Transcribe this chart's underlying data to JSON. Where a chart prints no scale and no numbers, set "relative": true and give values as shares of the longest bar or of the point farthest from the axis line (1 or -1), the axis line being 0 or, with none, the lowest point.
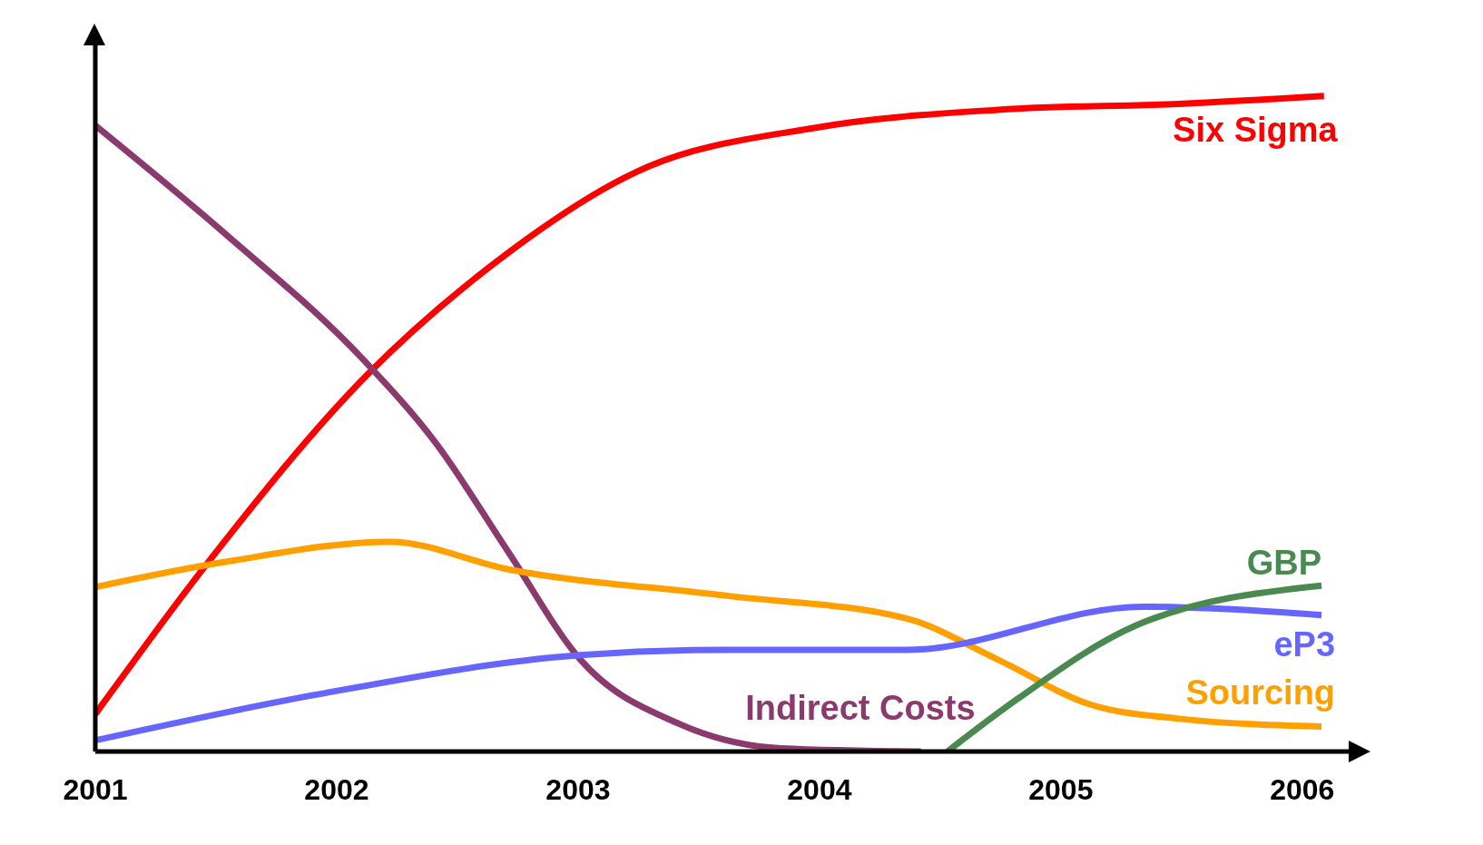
{
  "chart_data": {
    "type": "line",
    "relative": true,
    "xlim": [
      2001,
      2006.2
    ],
    "xticks": [
      2001,
      2002,
      2003,
      2004,
      2005,
      2006
    ],
    "grid": false,
    "legend": false,
    "marker": "none",
    "line_style": "solid",
    "series": [
      {
        "name": "Six Sigma",
        "color": "#ff0000",
        "x": [
          2001,
          2001.47,
          2002.13,
          2002.64,
          2003.24,
          2003.99,
          2004.74,
          2005.49,
          2006.09
        ],
        "values": [
          0.057,
          0.29,
          0.576,
          0.741,
          0.884,
          0.952,
          0.979,
          0.988,
          1
        ]
      },
      {
        "name": "Indirect Costs",
        "color": "#8b3a6e",
        "x": [
          2001,
          2001.55,
          2002.11,
          2002.41,
          2002.71,
          2003.01,
          2003.42,
          2003.84,
          2004.42
        ],
        "values": [
          0.955,
          0.786,
          0.598,
          0.471,
          0.305,
          0.14,
          0.042,
          0.005,
          0
        ]
      },
      {
        "name": "Sourcing",
        "color": "#ffa000",
        "x": [
          2001,
          2001.55,
          2002.22,
          2002.71,
          2003.61,
          2004.36,
          2004.74,
          2005.12,
          2005.49,
          2006.08
        ],
        "values": [
          0.251,
          0.29,
          0.32,
          0.278,
          0.238,
          0.203,
          0.14,
          0.072,
          0.05,
          0.038
        ]
      },
      {
        "name": "eP3",
        "color": "#6666ff",
        "x": [
          2001,
          2001.92,
          2003.01,
          2003.61,
          2004.36,
          2005.34,
          2006.08
        ],
        "values": [
          0.017,
          0.087,
          0.147,
          0.155,
          0.155,
          0.221,
          0.208
        ]
      },
      {
        "name": "GBP",
        "color": "#4a8a50",
        "x": [
          2004.53,
          2004.82,
          2005.31,
          2006.08
        ],
        "values": [
          0,
          0.08,
          0.192,
          0.253
        ]
      }
    ]
  }
}
